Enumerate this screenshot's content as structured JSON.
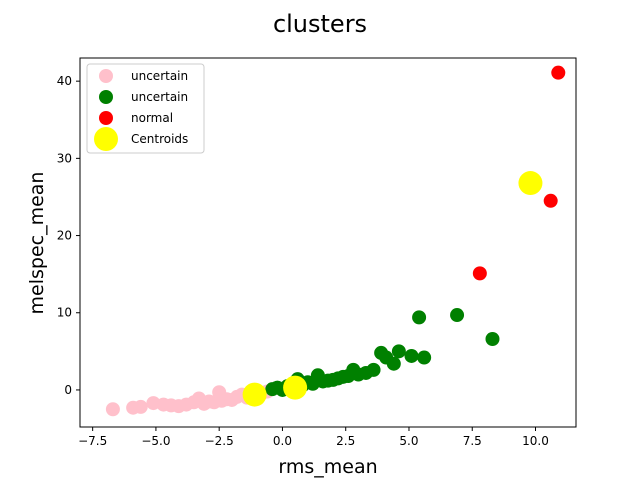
{
  "chart_data": {
    "type": "scatter",
    "title": "clusters",
    "xlabel": "rms_mean",
    "ylabel": "melspec_mean",
    "xlim": [
      -8.0,
      11.6
    ],
    "ylim": [
      -4.8,
      43.0
    ],
    "xticks": [
      -7.5,
      -5.0,
      -2.5,
      0.0,
      2.5,
      5.0,
      7.5,
      10.0
    ],
    "xtick_labels": [
      "−7.5",
      "−5.0",
      "−2.5",
      "0.0",
      "2.5",
      "5.0",
      "7.5",
      "10.0"
    ],
    "yticks": [
      0,
      10,
      20,
      30,
      40
    ],
    "ytick_labels": [
      "0",
      "10",
      "20",
      "30",
      "40"
    ],
    "grid": false,
    "legend_position": "top-left",
    "series": [
      {
        "name": "uncertain",
        "color": "#ffc0cb",
        "marker_size": "medium",
        "points": [
          [
            -6.7,
            -2.5
          ],
          [
            -5.9,
            -2.3
          ],
          [
            -5.6,
            -2.2
          ],
          [
            -5.1,
            -1.7
          ],
          [
            -4.7,
            -1.9
          ],
          [
            -4.4,
            -2.0
          ],
          [
            -4.1,
            -2.1
          ],
          [
            -3.8,
            -1.9
          ],
          [
            -3.5,
            -1.6
          ],
          [
            -3.3,
            -1.1
          ],
          [
            -3.1,
            -1.8
          ],
          [
            -2.9,
            -1.5
          ],
          [
            -2.7,
            -1.6
          ],
          [
            -2.5,
            -0.3
          ],
          [
            -2.4,
            -1.4
          ],
          [
            -2.2,
            -1.2
          ],
          [
            -2.0,
            -1.3
          ],
          [
            -1.8,
            -0.9
          ],
          [
            -1.6,
            -0.6
          ],
          [
            -1.4,
            -1.0
          ],
          [
            -1.2,
            -0.8
          ],
          [
            -1.0,
            -0.5
          ],
          [
            -0.8,
            -0.4
          ],
          [
            -0.6,
            -0.2
          ]
        ]
      },
      {
        "name": "uncertain",
        "color": "#008000",
        "marker_size": "medium",
        "points": [
          [
            -0.4,
            0.1
          ],
          [
            -0.2,
            0.3
          ],
          [
            0.0,
            0.0
          ],
          [
            0.2,
            0.5
          ],
          [
            0.4,
            0.8
          ],
          [
            0.6,
            1.4
          ],
          [
            0.8,
            0.6
          ],
          [
            1.0,
            1.0
          ],
          [
            1.2,
            0.8
          ],
          [
            1.4,
            1.9
          ],
          [
            1.6,
            1.1
          ],
          [
            1.8,
            1.2
          ],
          [
            2.0,
            1.3
          ],
          [
            2.2,
            1.5
          ],
          [
            2.4,
            1.7
          ],
          [
            2.6,
            1.8
          ],
          [
            2.8,
            2.6
          ],
          [
            3.0,
            2.0
          ],
          [
            3.3,
            2.2
          ],
          [
            3.6,
            2.6
          ],
          [
            3.9,
            4.8
          ],
          [
            4.1,
            4.2
          ],
          [
            4.4,
            3.4
          ],
          [
            4.6,
            5.0
          ],
          [
            5.1,
            4.4
          ],
          [
            5.4,
            9.4
          ],
          [
            5.6,
            4.2
          ],
          [
            6.9,
            9.7
          ],
          [
            8.3,
            6.6
          ]
        ]
      },
      {
        "name": "normal",
        "color": "#ff0000",
        "marker_size": "medium",
        "points": [
          [
            7.8,
            15.1
          ],
          [
            10.6,
            24.5
          ],
          [
            10.9,
            41.1
          ]
        ]
      },
      {
        "name": "Centroids",
        "color": "#ffff00",
        "marker_size": "large",
        "points": [
          [
            -1.1,
            -0.6
          ],
          [
            0.5,
            0.3
          ],
          [
            9.8,
            26.8
          ]
        ]
      }
    ]
  }
}
